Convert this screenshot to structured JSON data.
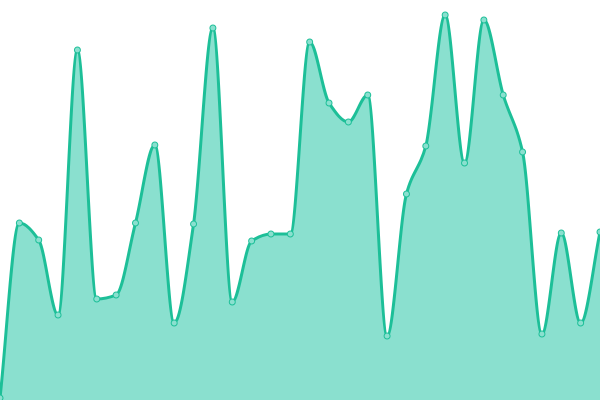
{
  "chart_data": {
    "type": "area",
    "title": "",
    "xlabel": "",
    "ylabel": "",
    "x": [
      0,
      1,
      2,
      3,
      4,
      5,
      6,
      7,
      8,
      9,
      10,
      11,
      12,
      13,
      14,
      15,
      16,
      17,
      18,
      19,
      20,
      21,
      22,
      23,
      24,
      25,
      26,
      27,
      28,
      29,
      30,
      31
    ],
    "values": [
      2,
      177,
      160,
      85,
      350,
      101,
      105,
      177,
      255,
      77,
      176,
      372,
      98,
      159,
      166,
      166,
      358,
      297,
      278,
      305,
      64,
      206,
      254,
      385,
      237,
      380,
      305,
      248,
      66,
      167,
      77,
      168
    ],
    "ylim": [
      0,
      400
    ],
    "grid": false,
    "axes_visible": false,
    "curve": "smooth",
    "markers": true,
    "colors": {
      "line": "#1dbf98",
      "fill": "#8ae0cf",
      "marker_fill": "#8ae0cf",
      "marker_stroke": "#1dbf98"
    }
  }
}
